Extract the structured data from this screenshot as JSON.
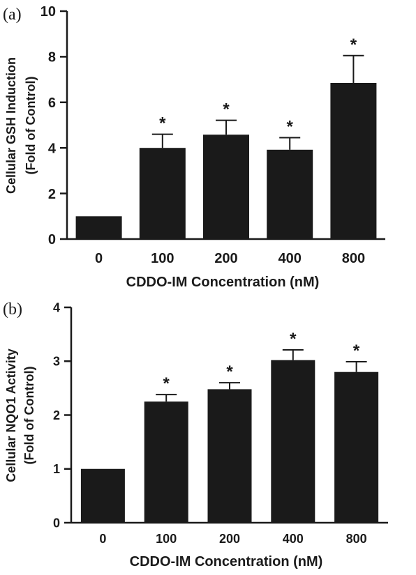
{
  "colors": {
    "bar": "#1a1a1a",
    "axis": "#1a1a1a",
    "background": "#ffffff"
  },
  "chart_data": [
    {
      "type": "bar",
      "panel_label": "(a)",
      "categories": [
        "0",
        "100",
        "200",
        "400",
        "800"
      ],
      "values": [
        1.0,
        4.0,
        4.58,
        3.92,
        6.85
      ],
      "error_upper": [
        0,
        0.6,
        0.63,
        0.53,
        1.2
      ],
      "significance": [
        "",
        "*",
        "*",
        "*",
        "*"
      ],
      "xlabel": "CDDO-IM Concentration (nM)",
      "ylabel": [
        "Cellular GSH Induction",
        "(Fold of Control)"
      ],
      "ylim": [
        0,
        10
      ],
      "yticks": [
        0,
        2,
        4,
        6,
        8,
        10
      ],
      "grid": false,
      "legend": "none"
    },
    {
      "type": "bar",
      "panel_label": "(b)",
      "categories": [
        "0",
        "100",
        "200",
        "400",
        "800"
      ],
      "values": [
        1.0,
        2.25,
        2.48,
        3.02,
        2.8
      ],
      "error_upper": [
        0,
        0.13,
        0.12,
        0.19,
        0.19
      ],
      "significance": [
        "",
        "*",
        "*",
        "*",
        "*"
      ],
      "xlabel": "CDDO-IM Concentration (nM)",
      "ylabel": [
        "Cellular NQO1 Activity",
        "(Fold of Control)"
      ],
      "ylim": [
        0,
        4
      ],
      "yticks": [
        0,
        1,
        2,
        3,
        4
      ],
      "grid": false,
      "legend": "none"
    }
  ]
}
